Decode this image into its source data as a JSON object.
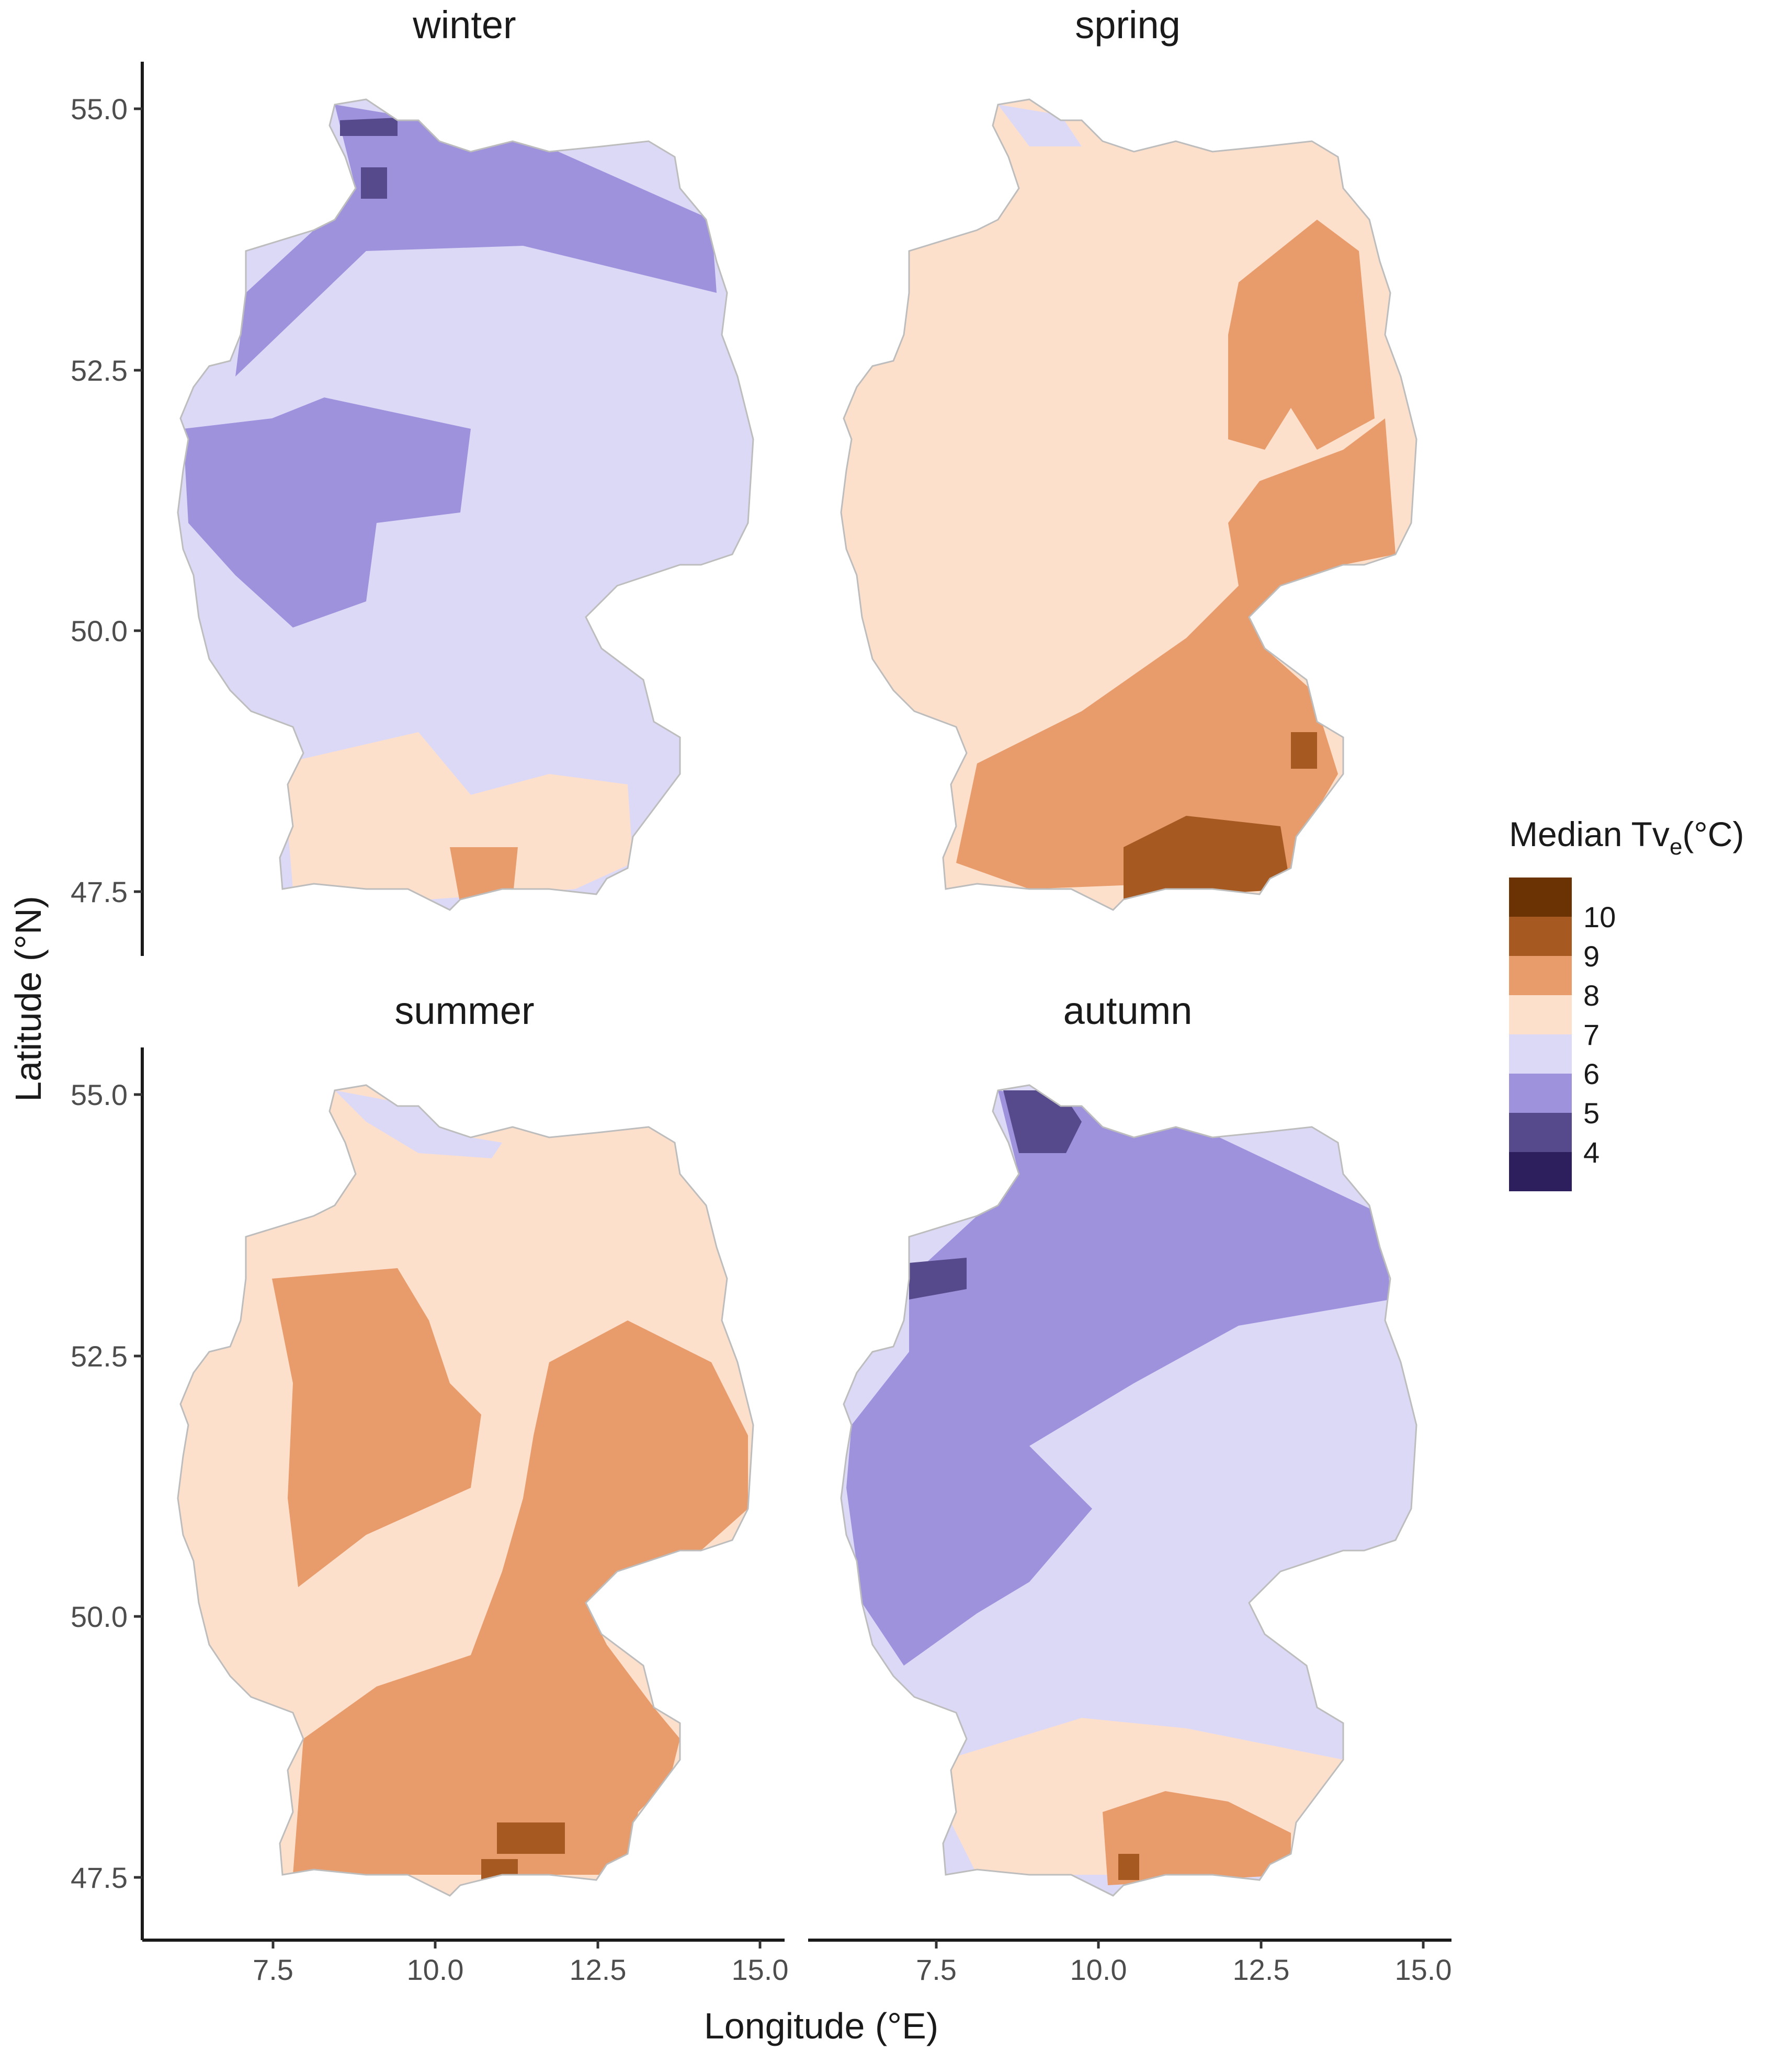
{
  "chart_data": {
    "type": "heatmap",
    "x_label": "Longitude (°E)",
    "y_label": "Latitude (°N)",
    "x_ticks": [
      "7.5",
      "10.0",
      "12.5",
      "15.0"
    ],
    "y_ticks": [
      "55.0",
      "52.5",
      "50.0",
      "47.5"
    ],
    "x_range": [
      5.8,
      15.4
    ],
    "y_range": [
      47.1,
      55.4
    ],
    "panels": [
      "winter",
      "spring",
      "summer",
      "autumn"
    ],
    "legend": {
      "title_main": "Median Tv",
      "title_sub": "e",
      "title_unit": "(°C)",
      "bins": [
        {
          "label": "10",
          "color": "#6b3304"
        },
        {
          "label": "9",
          "color": "#a65a22"
        },
        {
          "label": "8",
          "color": "#e89b6b"
        },
        {
          "label": "7",
          "color": "#fde0cc"
        },
        {
          "label": "6",
          "color": "#dcd9f7"
        },
        {
          "label": "5",
          "color": "#9e92dd"
        },
        {
          "label": "4",
          "color": "#574a8c"
        },
        {
          "label": "",
          "color": "#2d1e5e"
        }
      ]
    },
    "dominant_class_by_panel": {
      "winter": "6",
      "spring": "7",
      "summer": "7",
      "autumn": "6"
    }
  }
}
